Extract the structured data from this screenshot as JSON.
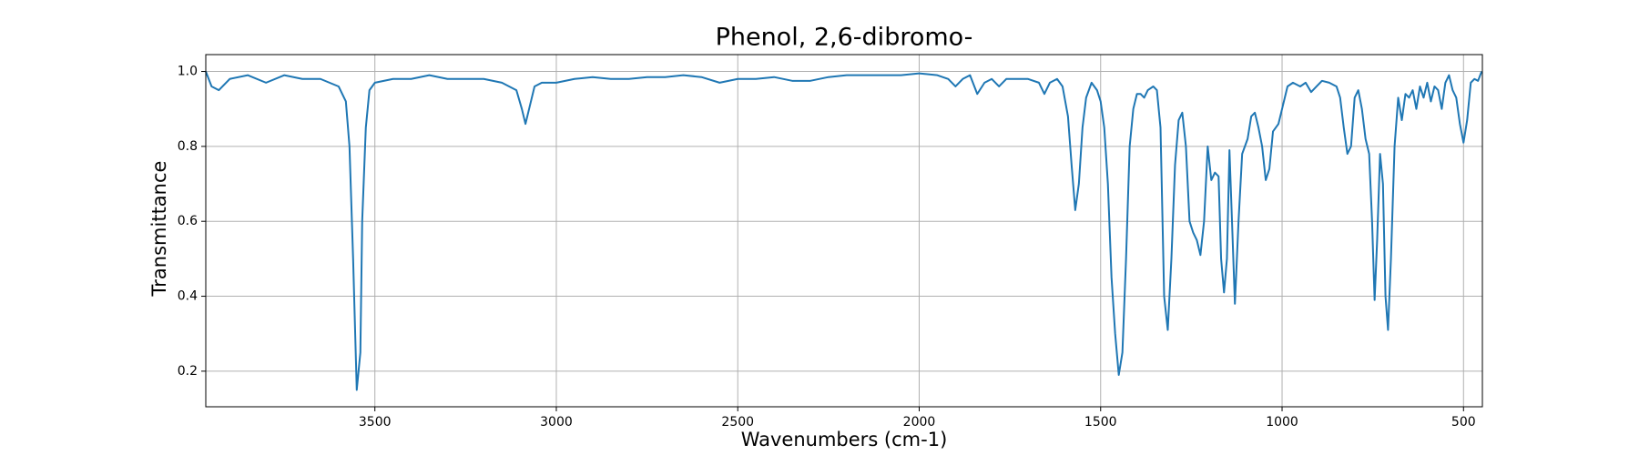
{
  "chart_data": {
    "type": "line",
    "title": "Phenol, 2,6-dibromo-",
    "x_label": "Wavenumbers (cm-1)",
    "y_label": "Transmittance",
    "color": "#1f77b4",
    "grid": true,
    "xlim": [
      3966,
      448
    ],
    "ylim": [
      0.105,
      1.045
    ],
    "xticks": [
      3500,
      3000,
      2500,
      2000,
      1500,
      1000,
      500
    ],
    "yticks": [
      0.2,
      0.4,
      0.6,
      0.8,
      {
        "value": 1,
        "label": "1.0"
      }
    ],
    "x": [
      3966,
      3950,
      3930,
      3900,
      3850,
      3800,
      3750,
      3700,
      3650,
      3600,
      3580,
      3570,
      3560,
      3550,
      3540,
      3535,
      3525,
      3515,
      3500,
      3450,
      3400,
      3350,
      3300,
      3250,
      3200,
      3150,
      3110,
      3095,
      3085,
      3075,
      3060,
      3040,
      3000,
      2950,
      2900,
      2850,
      2800,
      2750,
      2700,
      2650,
      2600,
      2550,
      2500,
      2450,
      2400,
      2350,
      2300,
      2250,
      2200,
      2150,
      2100,
      2050,
      2000,
      1950,
      1920,
      1900,
      1880,
      1860,
      1840,
      1820,
      1800,
      1780,
      1760,
      1700,
      1670,
      1655,
      1640,
      1620,
      1605,
      1590,
      1580,
      1570,
      1560,
      1550,
      1540,
      1525,
      1510,
      1500,
      1490,
      1480,
      1470,
      1460,
      1450,
      1440,
      1430,
      1420,
      1410,
      1400,
      1390,
      1380,
      1370,
      1355,
      1345,
      1335,
      1325,
      1315,
      1305,
      1295,
      1285,
      1275,
      1265,
      1255,
      1245,
      1235,
      1225,
      1215,
      1205,
      1195,
      1185,
      1175,
      1168,
      1160,
      1152,
      1145,
      1138,
      1130,
      1120,
      1110,
      1095,
      1085,
      1075,
      1065,
      1055,
      1045,
      1035,
      1025,
      1010,
      1000,
      985,
      970,
      950,
      935,
      920,
      905,
      890,
      870,
      850,
      840,
      830,
      820,
      810,
      800,
      790,
      780,
      770,
      760,
      752,
      745,
      738,
      730,
      722,
      715,
      708,
      700,
      690,
      680,
      670,
      660,
      650,
      640,
      630,
      620,
      610,
      600,
      590,
      580,
      570,
      560,
      550,
      540,
      530,
      520,
      510,
      500,
      490,
      480,
      470,
      460,
      450
    ],
    "values": [
      1.0,
      0.96,
      0.95,
      0.98,
      0.99,
      0.97,
      0.99,
      0.98,
      0.98,
      0.96,
      0.92,
      0.8,
      0.5,
      0.15,
      0.25,
      0.6,
      0.85,
      0.95,
      0.97,
      0.98,
      0.98,
      0.99,
      0.98,
      0.98,
      0.98,
      0.97,
      0.95,
      0.9,
      0.86,
      0.9,
      0.96,
      0.97,
      0.97,
      0.98,
      0.985,
      0.98,
      0.98,
      0.985,
      0.985,
      0.99,
      0.985,
      0.97,
      0.98,
      0.98,
      0.985,
      0.975,
      0.975,
      0.985,
      0.99,
      0.99,
      0.99,
      0.99,
      0.995,
      0.99,
      0.98,
      0.96,
      0.98,
      0.99,
      0.94,
      0.97,
      0.98,
      0.96,
      0.98,
      0.98,
      0.97,
      0.94,
      0.97,
      0.98,
      0.96,
      0.88,
      0.75,
      0.63,
      0.7,
      0.85,
      0.93,
      0.97,
      0.95,
      0.92,
      0.85,
      0.7,
      0.45,
      0.3,
      0.19,
      0.25,
      0.5,
      0.8,
      0.9,
      0.94,
      0.94,
      0.93,
      0.95,
      0.96,
      0.95,
      0.85,
      0.4,
      0.31,
      0.5,
      0.75,
      0.87,
      0.89,
      0.8,
      0.6,
      0.57,
      0.55,
      0.51,
      0.6,
      0.8,
      0.71,
      0.73,
      0.72,
      0.5,
      0.41,
      0.5,
      0.79,
      0.6,
      0.38,
      0.6,
      0.78,
      0.82,
      0.88,
      0.89,
      0.85,
      0.8,
      0.71,
      0.74,
      0.84,
      0.86,
      0.9,
      0.96,
      0.97,
      0.96,
      0.97,
      0.945,
      0.96,
      0.975,
      0.97,
      0.96,
      0.93,
      0.85,
      0.78,
      0.8,
      0.93,
      0.95,
      0.9,
      0.82,
      0.78,
      0.6,
      0.39,
      0.55,
      0.78,
      0.7,
      0.4,
      0.31,
      0.5,
      0.8,
      0.93,
      0.87,
      0.94,
      0.93,
      0.95,
      0.9,
      0.96,
      0.93,
      0.97,
      0.92,
      0.96,
      0.95,
      0.9,
      0.97,
      0.99,
      0.95,
      0.93,
      0.86,
      0.81,
      0.87,
      0.97,
      0.98,
      0.975,
      1.0
    ]
  }
}
